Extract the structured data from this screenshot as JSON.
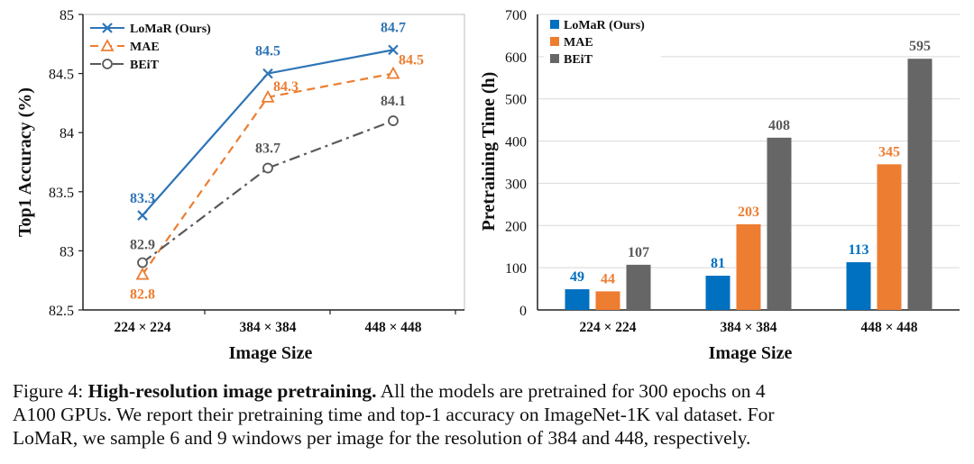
{
  "chart_data": [
    {
      "type": "line",
      "categories": [
        "224 × 224",
        "384 × 384",
        "448 × 448"
      ],
      "series": [
        {
          "name": "LoMaR (Ours)",
          "values": [
            83.3,
            84.5,
            84.7
          ],
          "color": "#2E75B6",
          "marker": "×",
          "dash": "solid"
        },
        {
          "name": "MAE",
          "values": [
            82.8,
            84.3,
            84.5
          ],
          "color": "#ED7D31",
          "marker": "triangle",
          "dash": "dashed"
        },
        {
          "name": "BEiT",
          "values": [
            82.9,
            83.7,
            84.1
          ],
          "color": "#595959",
          "marker": "circle",
          "dash": "dashdot"
        }
      ],
      "xlabel": "Image Size",
      "ylabel": "Top1 Accuracy (%)",
      "ylim": [
        82.5,
        85
      ],
      "yticks": [
        "82.5",
        "83",
        "83.5",
        "84",
        "84.5",
        "85"
      ],
      "legend": "top-left",
      "grid": false
    },
    {
      "type": "bar",
      "categories": [
        "224 × 224",
        "384 × 384",
        "448 × 448"
      ],
      "series": [
        {
          "name": "LoMaR (Ours)",
          "values": [
            49,
            81,
            113
          ],
          "color": "#0070C0"
        },
        {
          "name": "MAE",
          "values": [
            44,
            203,
            345
          ],
          "color": "#ED7D31"
        },
        {
          "name": "BEiT",
          "values": [
            107,
            408,
            595
          ],
          "color": "#666666"
        }
      ],
      "xlabel": "Image Size",
      "ylabel": "Pretraining Time (h)",
      "ylim": [
        0,
        700
      ],
      "yticks": [
        "0",
        "100",
        "200",
        "300",
        "400",
        "500",
        "600",
        "700"
      ],
      "legend": "top-left",
      "grid": true
    }
  ],
  "caption": {
    "figure_label": "Figure 4:",
    "bold": "High-resolution image pretraining.",
    "line1": "All the models are pretrained for 300 epochs on 4",
    "line2": "A100 GPUs. We report their pretraining time and top-1 accuracy on ImageNet-1K val dataset. For",
    "line3": "LoMaR, we sample 6 and 9 windows per image for the resolution of 384 and 448, respectively."
  }
}
